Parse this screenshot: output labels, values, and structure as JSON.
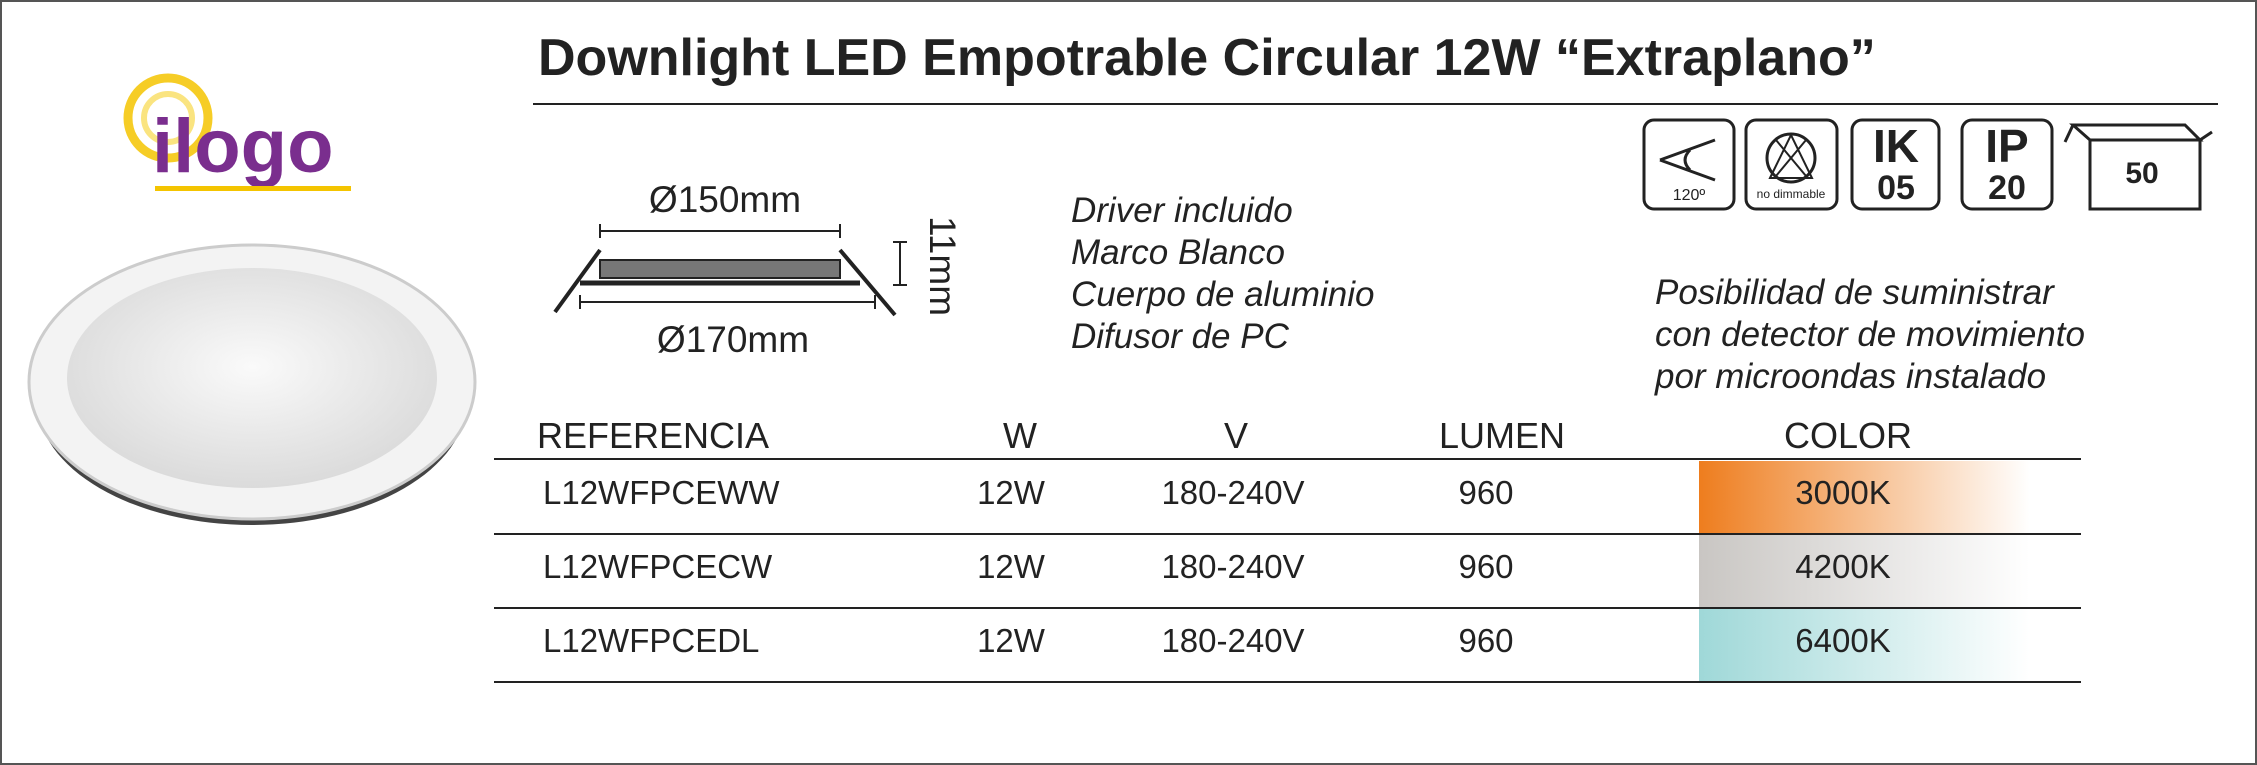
{
  "header": {
    "title": "Downlight LED Empotrable Circular 12W “Extraplano”",
    "logo": "ilogo"
  },
  "dimensions": {
    "inner_diameter": "Ø150mm",
    "outer_diameter": "Ø170mm",
    "height": "11mm"
  },
  "features": [
    "Driver incluido",
    "Marco Blanco",
    "Cuerpo de aluminio",
    "Difusor de PC"
  ],
  "icons": {
    "angle": "120º",
    "dimmable": "no dimmable",
    "ik": {
      "label": "IK",
      "value": "05"
    },
    "ip": {
      "label": "IP",
      "value": "20"
    },
    "box": "50"
  },
  "note": [
    "Posibilidad de suministrar",
    "con detector de movimiento",
    "por microondas instalado"
  ],
  "table": {
    "headers": [
      "REFERENCIA",
      "W",
      "V",
      "LUMEN",
      "COLOR"
    ],
    "rows": [
      [
        "L12WFPCEWW",
        "12W",
        "180-240V",
        "960",
        "3000K"
      ],
      [
        "L12WFPCECW",
        "12W",
        "180-240V",
        "960",
        "4200K"
      ],
      [
        "L12WFPCEDL",
        "12W",
        "180-240V",
        "960",
        "6400K"
      ]
    ]
  }
}
